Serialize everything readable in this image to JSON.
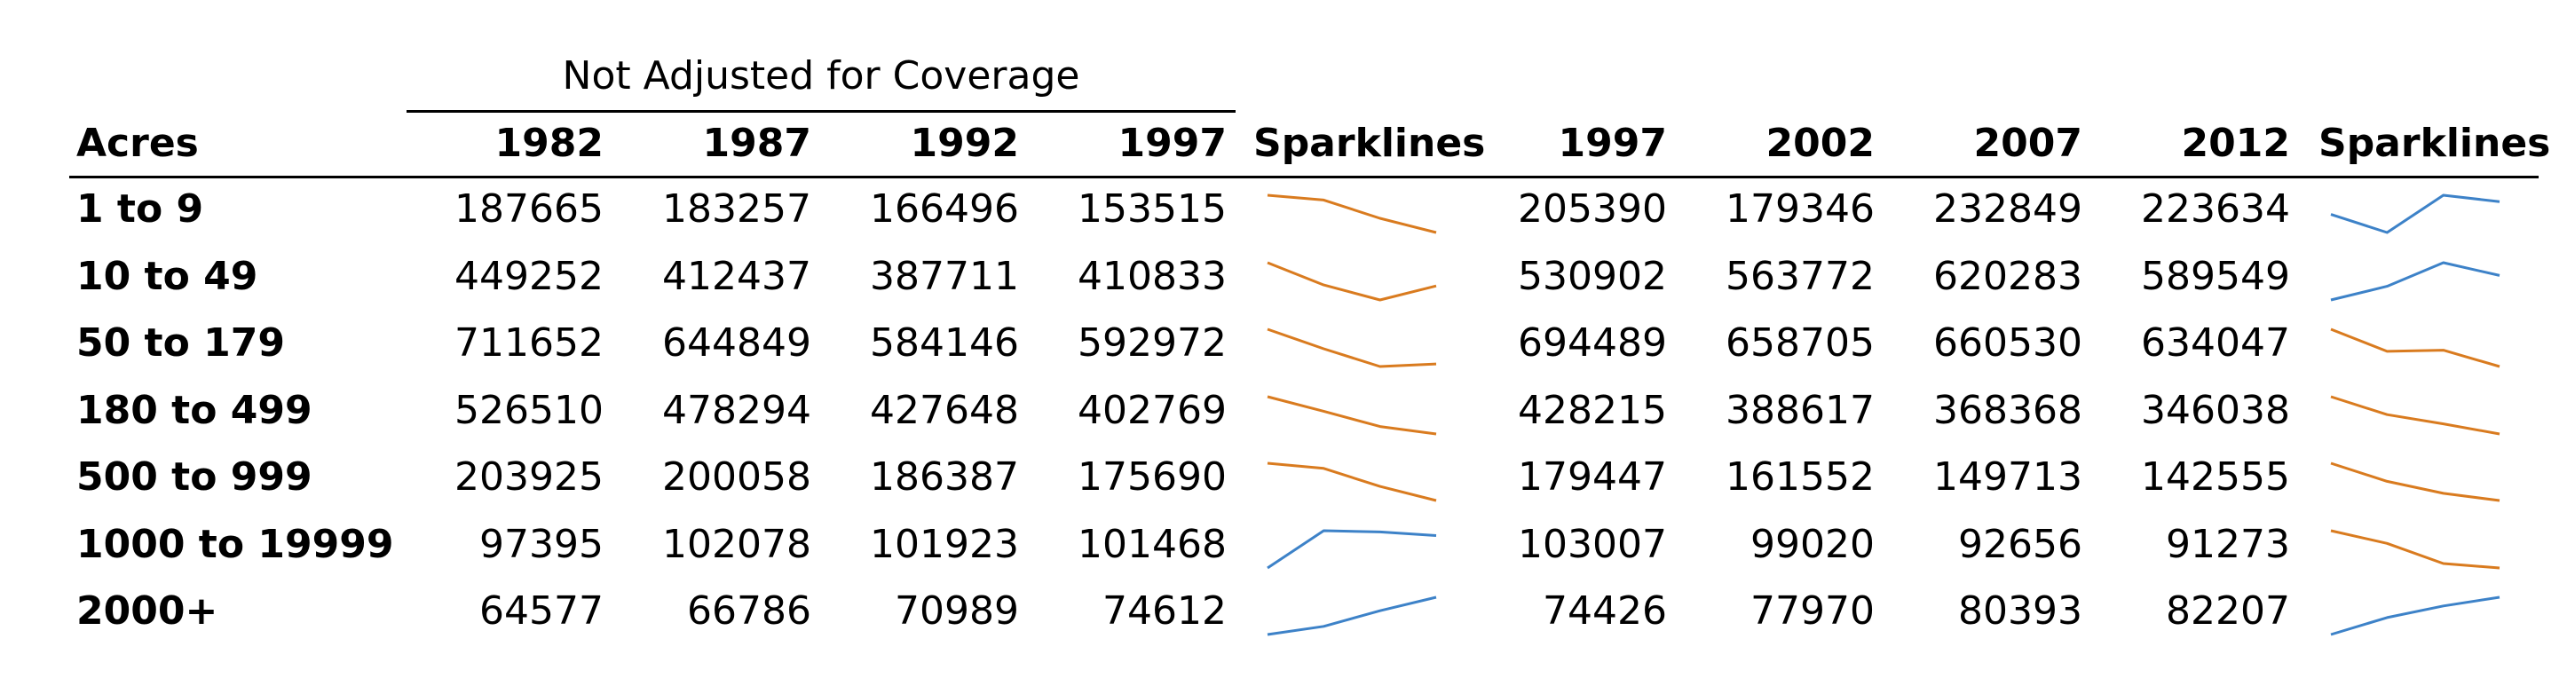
{
  "header": {
    "group_label": "Not Adjusted for Coverage",
    "row_header": "Acres",
    "left_years": [
      "1982",
      "1987",
      "1992",
      "1997"
    ],
    "right_years": [
      "1997",
      "2002",
      "2007",
      "2012"
    ],
    "sparklines_label_left": "Sparklines",
    "sparklines_label_right": "Sparklines"
  },
  "colors": {
    "decrease": "#d97b1f",
    "increase": "#3d82c8"
  },
  "rows": [
    {
      "label": "1 to 9",
      "left": [
        187665,
        183257,
        166496,
        153515
      ],
      "right": [
        205390,
        179346,
        232849,
        223634
      ],
      "left_trend": "decrease",
      "right_trend": "increase"
    },
    {
      "label": "10 to 49",
      "left": [
        449252,
        412437,
        387711,
        410833
      ],
      "right": [
        530902,
        563772,
        620283,
        589549
      ],
      "left_trend": "decrease",
      "right_trend": "increase"
    },
    {
      "label": "50 to 179",
      "left": [
        711652,
        644849,
        584146,
        592972
      ],
      "right": [
        694489,
        658705,
        660530,
        634047
      ],
      "left_trend": "decrease",
      "right_trend": "decrease"
    },
    {
      "label": "180 to 499",
      "left": [
        526510,
        478294,
        427648,
        402769
      ],
      "right": [
        428215,
        388617,
        368368,
        346038
      ],
      "left_trend": "decrease",
      "right_trend": "decrease"
    },
    {
      "label": "500 to 999",
      "left": [
        203925,
        200058,
        186387,
        175690
      ],
      "right": [
        179447,
        161552,
        149713,
        142555
      ],
      "left_trend": "decrease",
      "right_trend": "decrease"
    },
    {
      "label": "1000 to 19999",
      "left": [
        97395,
        102078,
        101923,
        101468
      ],
      "right": [
        103007,
        99020,
        92656,
        91273
      ],
      "left_trend": "increase",
      "right_trend": "decrease"
    },
    {
      "label": "2000+",
      "left": [
        64577,
        66786,
        70989,
        74612
      ],
      "right": [
        74426,
        77970,
        80393,
        82207
      ],
      "left_trend": "increase",
      "right_trend": "increase"
    }
  ]
}
